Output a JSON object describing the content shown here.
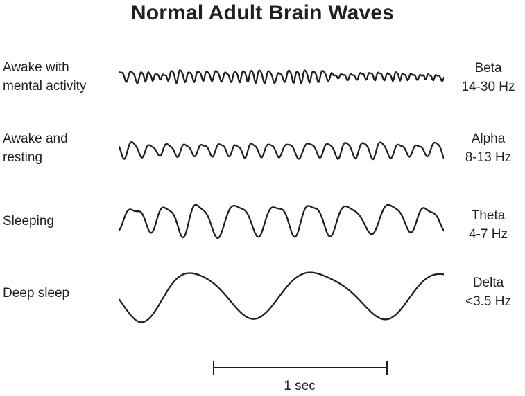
{
  "title": "Normal Adult Brain Waves",
  "rows": [
    {
      "state": "Awake with\nmental activity",
      "wave_name": "Beta",
      "freq_range": "14-30 Hz"
    },
    {
      "state": "Awake and\nresting",
      "wave_name": "Alpha",
      "freq_range": "8-13 Hz"
    },
    {
      "state": "Sleeping",
      "wave_name": "Theta",
      "freq_range": "4-7 Hz"
    },
    {
      "state": "Deep sleep",
      "wave_name": "Delta",
      "freq_range": "<3.5 Hz"
    }
  ],
  "scale_bar": {
    "label": "1 sec",
    "seconds": 1,
    "pixels_per_second": 250
  },
  "waves": [
    {
      "name": "beta",
      "frequency_hz": "14-30",
      "seed": 7,
      "cycle": 12.5,
      "amp": 6.5,
      "fj": 0.25,
      "am": 0.55,
      "h2": 0.3,
      "hn": 0.25
    },
    {
      "name": "alpha",
      "frequency_hz": "8-13",
      "seed": 11,
      "cycle": 26,
      "amp": 11,
      "fj": 0.2,
      "am": 0.45,
      "h2": 0.22,
      "hn": 0.15
    },
    {
      "name": "theta",
      "frequency_hz": "4-7",
      "seed": 5,
      "cycle": 52,
      "amp": 19,
      "fj": 0.22,
      "am": 0.3,
      "h2": 0.28,
      "hn": 0.18
    },
    {
      "name": "delta",
      "frequency_hz": "<3.5",
      "seed": 3,
      "cycle": 160,
      "amp": 33,
      "fj": 0.18,
      "am": 0.22,
      "h2": 0.15,
      "hn": 0.12
    }
  ],
  "colors": {
    "ink": "#231F20",
    "background": "#FFFFFF"
  }
}
